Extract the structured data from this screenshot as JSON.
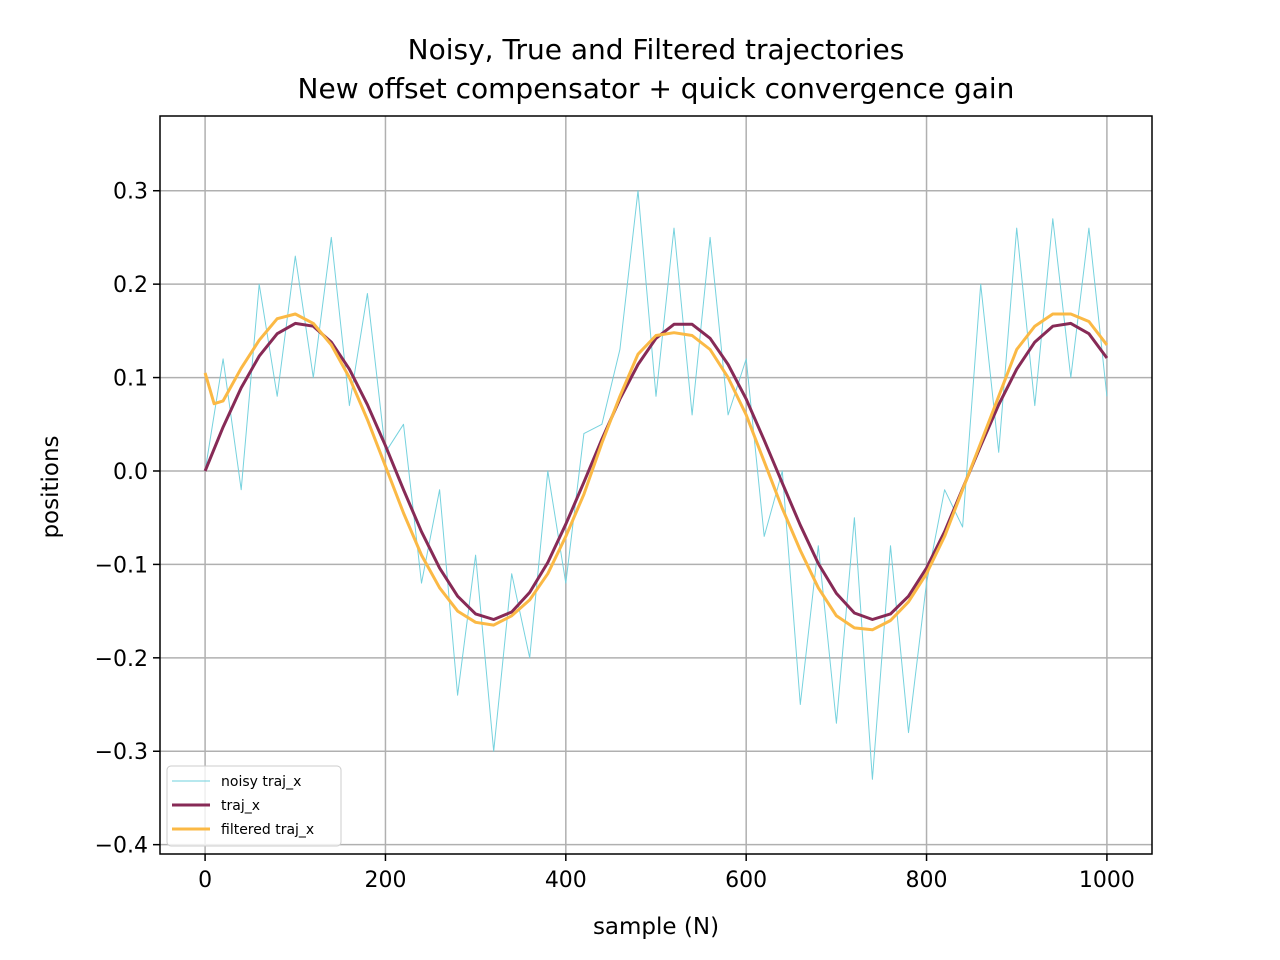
{
  "chart_data": {
    "type": "line",
    "title": "Noisy, True and Filtered trajectories",
    "subtitle": "New offset compensator + quick convergence gain",
    "xlabel": "sample (N)",
    "ylabel": "positions",
    "xlim": [
      -50,
      1050
    ],
    "ylim": [
      -0.41,
      0.38
    ],
    "grid": true,
    "legend_position": "lower-left",
    "x_ticks": [
      0,
      200,
      400,
      600,
      800,
      1000
    ],
    "x_tick_labels": [
      "0",
      "200",
      "400",
      "600",
      "800",
      "1000"
    ],
    "y_ticks": [
      0.3,
      0.2,
      0.1,
      0.0,
      -0.1,
      -0.2,
      -0.3,
      -0.4
    ],
    "y_tick_labels": [
      "0.3",
      "0.2",
      "0.1",
      "0.0",
      "−0.1",
      "−0.2",
      "−0.3",
      "−0.4"
    ],
    "series": [
      {
        "name": "noisy traj_x",
        "color": "#6fd0dc",
        "x": [
          0,
          20,
          40,
          60,
          80,
          100,
          120,
          140,
          160,
          180,
          200,
          220,
          240,
          260,
          280,
          300,
          320,
          340,
          360,
          380,
          400,
          420,
          440,
          460,
          480,
          500,
          520,
          540,
          560,
          580,
          600,
          620,
          640,
          660,
          680,
          700,
          720,
          740,
          760,
          780,
          800,
          820,
          840,
          860,
          880,
          900,
          920,
          940,
          960,
          980,
          1000
        ],
        "y": [
          0.0,
          0.12,
          -0.02,
          0.2,
          0.08,
          0.23,
          0.1,
          0.25,
          0.07,
          0.19,
          0.02,
          0.05,
          -0.12,
          -0.02,
          -0.24,
          -0.09,
          -0.3,
          -0.11,
          -0.2,
          0.0,
          -0.12,
          0.04,
          0.05,
          0.13,
          0.3,
          0.08,
          0.26,
          0.06,
          0.25,
          0.06,
          0.12,
          -0.07,
          0.0,
          -0.25,
          -0.08,
          -0.27,
          -0.05,
          -0.33,
          -0.08,
          -0.28,
          -0.12,
          -0.02,
          -0.06,
          0.2,
          0.02,
          0.26,
          0.07,
          0.27,
          0.1,
          0.26,
          0.08
        ]
      },
      {
        "name": "traj_x",
        "color": "#872a56",
        "x": [
          0,
          20,
          40,
          60,
          80,
          100,
          120,
          140,
          160,
          180,
          200,
          220,
          240,
          260,
          280,
          300,
          320,
          340,
          360,
          380,
          400,
          420,
          440,
          460,
          480,
          500,
          520,
          540,
          560,
          580,
          600,
          620,
          640,
          660,
          680,
          700,
          720,
          740,
          760,
          780,
          800,
          820,
          840,
          860,
          880,
          900,
          920,
          940,
          960,
          980,
          1000
        ],
        "y": [
          0.0,
          0.047,
          0.089,
          0.123,
          0.147,
          0.158,
          0.155,
          0.138,
          0.109,
          0.071,
          0.027,
          -0.02,
          -0.065,
          -0.104,
          -0.134,
          -0.153,
          -0.159,
          -0.151,
          -0.13,
          -0.098,
          -0.057,
          -0.012,
          0.034,
          0.077,
          0.114,
          0.142,
          0.157,
          0.157,
          0.142,
          0.114,
          0.077,
          0.033,
          -0.013,
          -0.058,
          -0.099,
          -0.131,
          -0.152,
          -0.159,
          -0.153,
          -0.134,
          -0.104,
          -0.065,
          -0.019,
          0.027,
          0.071,
          0.109,
          0.138,
          0.155,
          0.158,
          0.147,
          0.121
        ]
      },
      {
        "name": "filtered traj_x",
        "color": "#fbb945",
        "x": [
          0,
          10,
          20,
          40,
          60,
          80,
          100,
          120,
          140,
          160,
          180,
          200,
          220,
          240,
          260,
          280,
          300,
          320,
          340,
          360,
          380,
          400,
          420,
          440,
          460,
          480,
          500,
          520,
          540,
          560,
          580,
          600,
          620,
          640,
          660,
          680,
          700,
          720,
          740,
          760,
          780,
          800,
          820,
          840,
          860,
          880,
          900,
          920,
          940,
          960,
          980,
          1000
        ],
        "y": [
          0.105,
          0.072,
          0.075,
          0.11,
          0.14,
          0.163,
          0.168,
          0.158,
          0.135,
          0.1,
          0.055,
          0.005,
          -0.045,
          -0.09,
          -0.125,
          -0.15,
          -0.162,
          -0.165,
          -0.155,
          -0.138,
          -0.11,
          -0.07,
          -0.025,
          0.03,
          0.08,
          0.125,
          0.145,
          0.148,
          0.145,
          0.13,
          0.1,
          0.06,
          0.01,
          -0.04,
          -0.085,
          -0.125,
          -0.155,
          -0.168,
          -0.17,
          -0.16,
          -0.14,
          -0.11,
          -0.07,
          -0.02,
          0.03,
          0.08,
          0.13,
          0.155,
          0.168,
          0.168,
          0.16,
          0.135
        ]
      }
    ]
  }
}
